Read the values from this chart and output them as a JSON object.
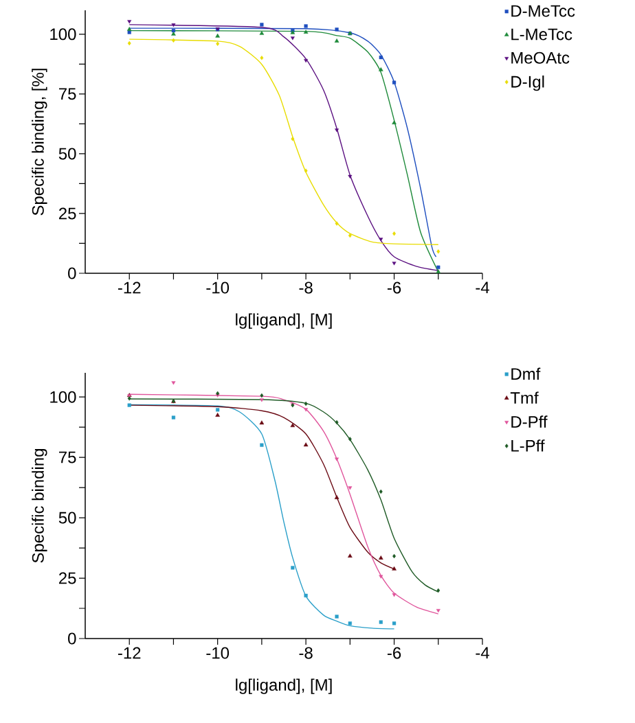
{
  "chart_data": [
    {
      "type": "scatter",
      "xlabel": "lg[ligand], [M]",
      "ylabel": "Specific binding, [%]",
      "xlim": [
        -13,
        -4
      ],
      "ylim": [
        0,
        110
      ],
      "xticks": [
        -12,
        {
          "value": -11,
          "label": null
        },
        -10,
        {
          "value": -9,
          "label": null
        },
        -8,
        {
          "value": -7,
          "label": null
        },
        -6,
        {
          "value": -5,
          "label": null
        },
        -4
      ],
      "yticks": [
        0,
        {
          "value": 12.5,
          "label": null
        },
        25,
        {
          "value": 37.5,
          "label": null
        },
        50,
        {
          "value": 62.5,
          "label": null
        },
        75,
        {
          "value": 87.5,
          "label": null
        },
        100
      ],
      "legend": "top right",
      "grid": false,
      "series": [
        {
          "name": "D-MeTcc",
          "color": "#1f4fbf",
          "marker": "square",
          "x": [
            -12,
            -11,
            -10,
            -9,
            -8.3,
            -8,
            -7.3,
            -7,
            -6.3,
            -6,
            -5
          ],
          "values": [
            100.8,
            101.5,
            102,
            104,
            101.5,
            103.4,
            102,
            100.3,
            90.3,
            79.8,
            2.5
          ]
        },
        {
          "name": "L-MeTcc",
          "color": "#1e8a3a",
          "marker": "triangle",
          "x": [
            -12,
            -11,
            -10,
            -9,
            -8.3,
            -8,
            -7.3,
            -7,
            -6.3,
            -6,
            -5
          ],
          "values": [
            102,
            100,
            99.2,
            100.3,
            100.6,
            100.8,
            97.1,
            100.3,
            85.1,
            62.9,
            0.6
          ]
        },
        {
          "name": "MeOAtc",
          "color": "#5a0f80",
          "marker": "triangle-down",
          "x": [
            -12,
            -11,
            -10,
            -8.3,
            -8,
            -7.3,
            -7,
            -6.3,
            -6
          ],
          "values": [
            105.4,
            104,
            102.3,
            98.5,
            89.1,
            60,
            40.6,
            14.3,
            4.3
          ]
        },
        {
          "name": "D-Igl",
          "color": "#e8dc00",
          "marker": "diamond",
          "x": [
            -12,
            -11,
            -10,
            -9,
            -8.3,
            -8,
            -7.3,
            -7,
            -6,
            -5
          ],
          "values": [
            96.2,
            97.4,
            96,
            90.1,
            56.2,
            42.9,
            20.8,
            15.8,
            16.6,
            9.1
          ]
        },
        {
          "type": "line",
          "color": "#1f4fbf",
          "marker": "none",
          "x": [
            -12,
            -8,
            -7,
            -6.6,
            -6.3,
            -6,
            -5.7,
            -5.4,
            -5.15,
            -5.05
          ],
          "values": [
            102.5,
            102.3,
            100.6,
            97.1,
            91.4,
            80,
            60.6,
            35.4,
            11.4,
            6.9
          ]
        },
        {
          "type": "line",
          "color": "#1e8a3a",
          "marker": "none",
          "x": [
            -12,
            -8,
            -7.3,
            -7,
            -6.6,
            -6.3,
            -6,
            -5.7,
            -5.4,
            -5
          ],
          "values": [
            101.5,
            101.2,
            99.4,
            98.3,
            92.6,
            84,
            64,
            41.1,
            17.1,
            0.6
          ]
        },
        {
          "type": "line",
          "color": "#5a0f80",
          "marker": "none",
          "x": [
            -12,
            -9,
            -8.5,
            -8,
            -7.6,
            -7.3,
            -7,
            -6.6,
            -6.3,
            -6,
            -5.5,
            -5
          ],
          "values": [
            104,
            102.9,
            98.9,
            89.7,
            76.6,
            60.6,
            41.1,
            24,
            13.7,
            6.9,
            2.9,
            1.1
          ]
        },
        {
          "type": "line",
          "color": "#e8dc00",
          "marker": "none",
          "x": [
            -12,
            -10,
            -9.5,
            -9,
            -8.6,
            -8.3,
            -8,
            -7.6,
            -7.3,
            -7,
            -6.5,
            -6,
            -5
          ],
          "values": [
            97.9,
            97.1,
            94.9,
            87.4,
            74.3,
            57.1,
            42.3,
            28.6,
            21.1,
            16.6,
            13.1,
            12.3,
            12
          ]
        }
      ]
    },
    {
      "type": "scatter",
      "xlabel": "lg[ligand], [M]",
      "ylabel": "Specific binding",
      "xlim": [
        -13,
        -4
      ],
      "ylim": [
        0,
        110
      ],
      "xticks": [
        -12,
        {
          "value": -11,
          "label": null
        },
        -10,
        {
          "value": -9,
          "label": null
        },
        -8,
        {
          "value": -7,
          "label": null
        },
        -6,
        {
          "value": -5,
          "label": null
        },
        -4
      ],
      "yticks": [
        0,
        {
          "value": 12.5,
          "label": null
        },
        25,
        {
          "value": 37.5,
          "label": null
        },
        50,
        {
          "value": 62.5,
          "label": null
        },
        75,
        {
          "value": 87.5,
          "label": null
        },
        100
      ],
      "legend": "top right",
      "grid": false,
      "series": [
        {
          "name": "Dmf",
          "color": "#2a9fc9",
          "marker": "square",
          "x": [
            -12,
            -11,
            -10,
            -9,
            -8.3,
            -8,
            -7.3,
            -7,
            -6.3,
            -6
          ],
          "values": [
            96.6,
            91.5,
            94.7,
            80.1,
            29.3,
            17.8,
            9.1,
            6.3,
            6.8,
            6.3
          ]
        },
        {
          "name": "Tmf",
          "color": "#6b0a14",
          "marker": "triangle",
          "x": [
            -12,
            -11,
            -10,
            -9,
            -8.3,
            -8,
            -7.3,
            -7,
            -6.3,
            -6
          ],
          "values": [
            100.6,
            98.1,
            92.4,
            89.2,
            88.1,
            80.1,
            58.3,
            34.1,
            33.3,
            28.8
          ]
        },
        {
          "name": "D-Pff",
          "color": "#e0559c",
          "marker": "triangle-down",
          "x": [
            -12,
            -11,
            -10,
            -9,
            -8.3,
            -8,
            -7.3,
            -7,
            -6.3,
            -6,
            -5
          ],
          "values": [
            100.6,
            106,
            100.8,
            98.9,
            96.9,
            94.9,
            74.4,
            62.5,
            25.8,
            18.2,
            11.7
          ]
        },
        {
          "name": "L-Pff",
          "color": "#1e5a25",
          "marker": "diamond",
          "x": [
            -12,
            -11,
            -10,
            -9,
            -8.3,
            -8,
            -7.3,
            -7,
            -6.3,
            -6,
            -5
          ],
          "values": [
            99.4,
            98.3,
            101.5,
            100.6,
            96.6,
            97.2,
            89.5,
            82.6,
            60.8,
            34.1,
            19.9
          ]
        },
        {
          "type": "line",
          "color": "#2a9fc9",
          "marker": "none",
          "x": [
            -12,
            -10,
            -9.5,
            -9,
            -8.7,
            -8.5,
            -8.3,
            -8,
            -7.6,
            -7.3,
            -7,
            -6.5,
            -6
          ],
          "values": [
            96.8,
            96.3,
            93.8,
            84.7,
            65.3,
            48.3,
            33.5,
            17.6,
            9.7,
            7.2,
            5.3,
            4.3,
            4
          ]
        },
        {
          "type": "line",
          "color": "#6b0a14",
          "marker": "none",
          "x": [
            -12,
            -10,
            -9,
            -8.5,
            -8,
            -7.6,
            -7.3,
            -7,
            -6.6,
            -6.3,
            -6
          ],
          "values": [
            96.6,
            96,
            94.3,
            91.5,
            84.7,
            72.2,
            58.5,
            46,
            35.8,
            31.3,
            28.8
          ]
        },
        {
          "type": "line",
          "color": "#e0559c",
          "marker": "none",
          "x": [
            -12,
            -9,
            -8.5,
            -8,
            -7.6,
            -7.3,
            -7,
            -6.6,
            -6.3,
            -6,
            -5.5,
            -5
          ],
          "values": [
            101.1,
            100.3,
            98.9,
            94.9,
            85.8,
            74.4,
            59.7,
            38.1,
            26.1,
            18.8,
            13.1,
            10.2
          ]
        },
        {
          "type": "line",
          "color": "#1e5a25",
          "marker": "none",
          "x": [
            -12,
            -9,
            -8,
            -7.6,
            -7.3,
            -7,
            -6.6,
            -6.3,
            -6,
            -5.6,
            -5.3,
            -5
          ],
          "values": [
            99.2,
            98.9,
            97.4,
            93.8,
            89.2,
            82.4,
            69.9,
            57.4,
            41.5,
            27.8,
            22.2,
            19.3
          ]
        }
      ]
    }
  ]
}
